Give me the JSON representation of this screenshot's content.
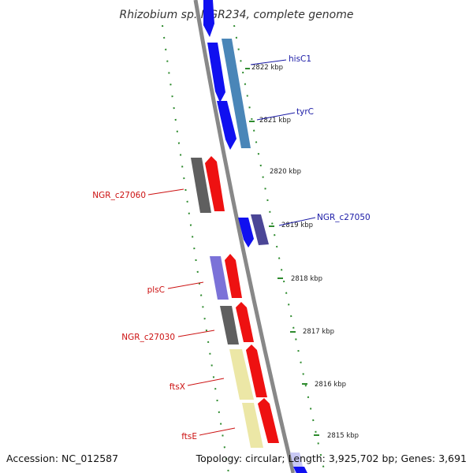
{
  "title": "Rhizobium sp. NGR234, complete genome",
  "footer": {
    "accession": "Accession: NC_012587",
    "summary": "Topology: circular; Length: 3,925,702 bp; Genes: 3,691"
  },
  "colors": {
    "forward_label": "#1a1aa6",
    "reverse_label": "#cc1111",
    "tick_dash": "#2e8b2e",
    "backbone": "#888888",
    "blue": "#1010f0",
    "steel": "#4a86b8",
    "purple_light": "#7b72d8",
    "purple_dark": "#4b4696",
    "red": "#ee1111",
    "gray": "#5f5f5f",
    "khaki": "#ece7a6"
  },
  "ticks": [
    "2822 kbp",
    "2821 kbp",
    "2820 kbp",
    "2819 kbp",
    "2818 kbp",
    "2817 kbp",
    "2816 kbp",
    "2815 kbp"
  ],
  "gene_labels": [
    {
      "text": "hisC1",
      "strand": "forward"
    },
    {
      "text": "tyrC",
      "strand": "forward"
    },
    {
      "text": "NGR_c27060",
      "strand": "reverse"
    },
    {
      "text": "NGR_c27050",
      "strand": "forward"
    },
    {
      "text": "plsC",
      "strand": "reverse"
    },
    {
      "text": "NGR_c27030",
      "strand": "reverse"
    },
    {
      "text": "ftsX",
      "strand": "reverse"
    },
    {
      "text": "ftsE",
      "strand": "reverse"
    }
  ]
}
